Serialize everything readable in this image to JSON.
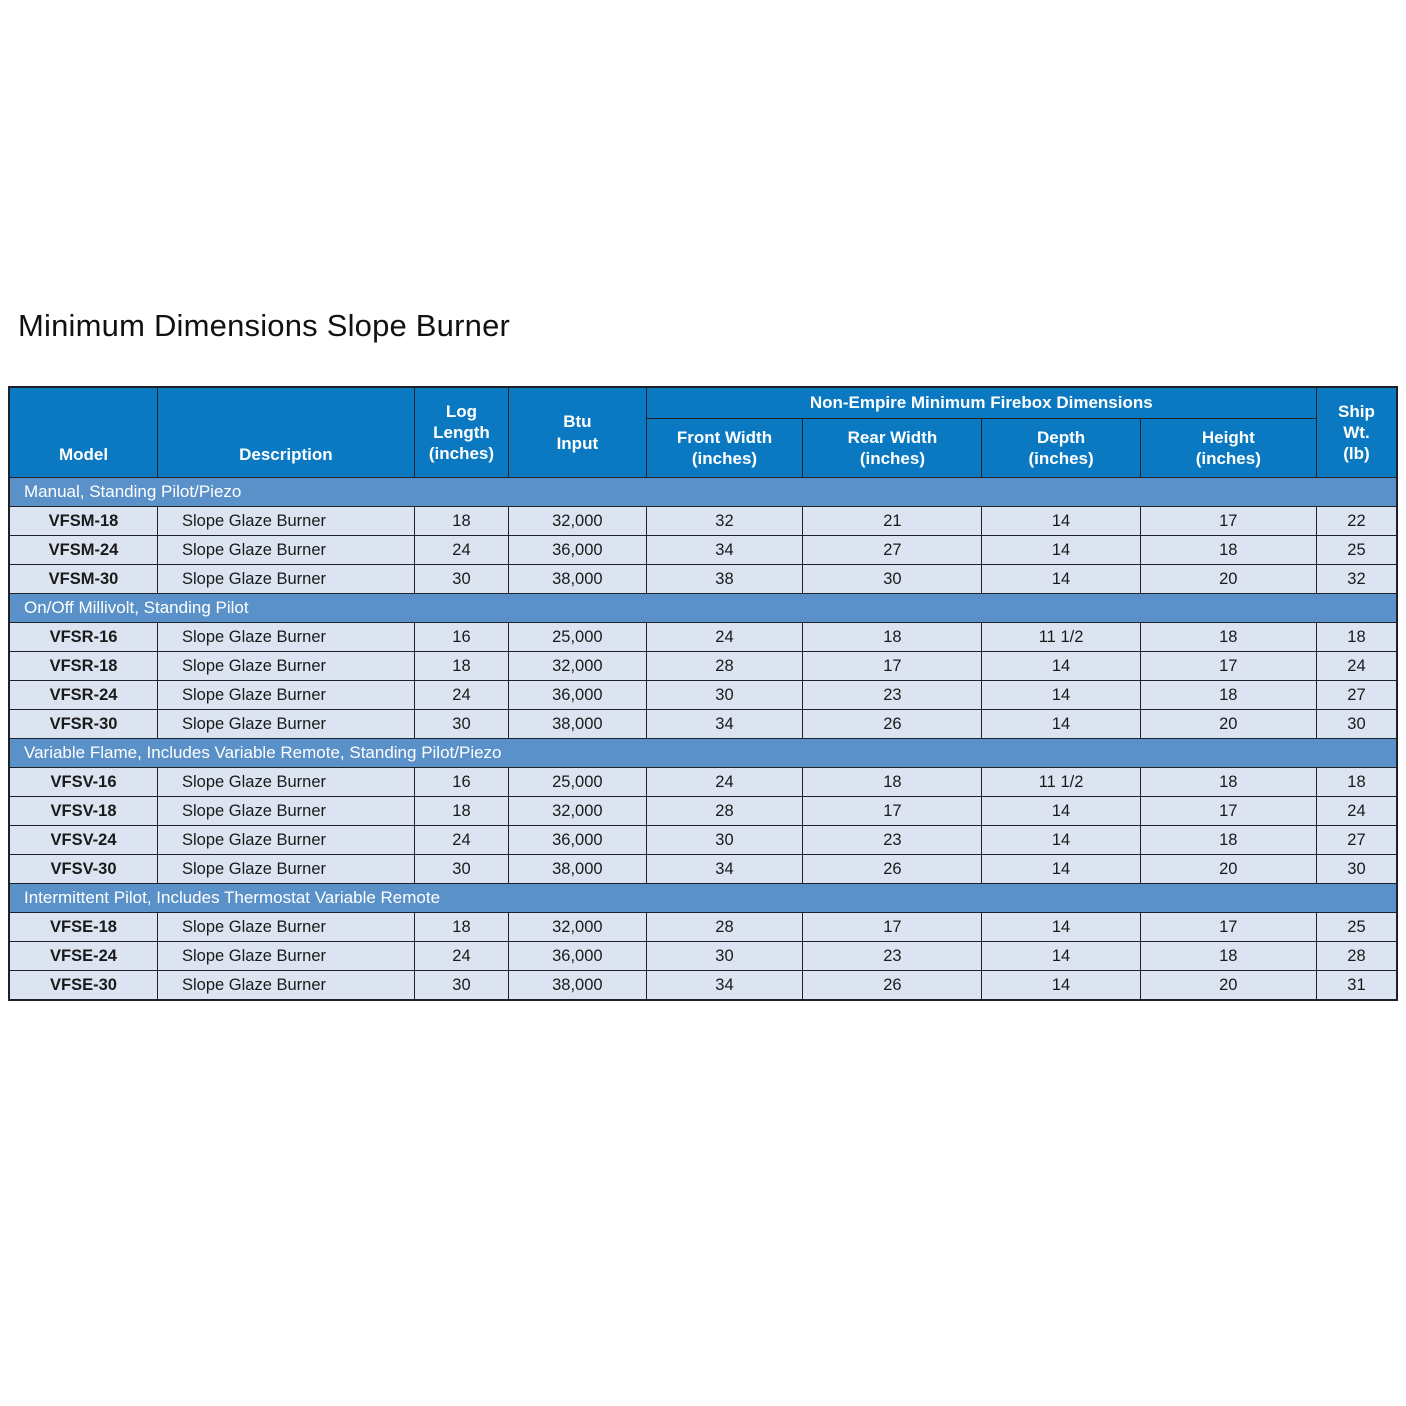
{
  "page": {
    "title": "Minimum Dimensions Slope Burner"
  },
  "table": {
    "colors": {
      "header_bg": "#0b79c1",
      "section_bg": "#5a91c8",
      "row_bg": "#dce4f1",
      "border": "#1c2228",
      "header_text": "#ffffff",
      "cell_text": "#1a1a1a"
    },
    "header": {
      "model": "Model",
      "description": "Description",
      "log_length": "Log\nLength\n(inches)",
      "btu_input": "Btu\nInput",
      "group": "Non-Empire Minimum Firebox Dimensions",
      "front_width": "Front Width\n(inches)",
      "rear_width": "Rear Width\n(inches)",
      "depth": "Depth\n(inches)",
      "height": "Height\n(inches)",
      "ship_wt": "Ship\nWt.\n(lb)"
    },
    "sections": [
      {
        "label": "Manual, Standing Pilot/Piezo",
        "rows": [
          {
            "model": "VFSM-18",
            "description": "Slope Glaze Burner",
            "log_length": "18",
            "btu_input": "32,000",
            "front_width": "32",
            "rear_width": "21",
            "depth": "14",
            "height": "17",
            "ship_wt": "22"
          },
          {
            "model": "VFSM-24",
            "description": "Slope Glaze Burner",
            "log_length": "24",
            "btu_input": "36,000",
            "front_width": "34",
            "rear_width": "27",
            "depth": "14",
            "height": "18",
            "ship_wt": "25"
          },
          {
            "model": "VFSM-30",
            "description": "Slope Glaze Burner",
            "log_length": "30",
            "btu_input": "38,000",
            "front_width": "38",
            "rear_width": "30",
            "depth": "14",
            "height": "20",
            "ship_wt": "32"
          }
        ]
      },
      {
        "label": "On/Off Millivolt, Standing Pilot",
        "rows": [
          {
            "model": "VFSR-16",
            "description": "Slope Glaze Burner",
            "log_length": "16",
            "btu_input": "25,000",
            "front_width": "24",
            "rear_width": "18",
            "depth": "11 1/2",
            "height": "18",
            "ship_wt": "18"
          },
          {
            "model": "VFSR-18",
            "description": "Slope Glaze Burner",
            "log_length": "18",
            "btu_input": "32,000",
            "front_width": "28",
            "rear_width": "17",
            "depth": "14",
            "height": "17",
            "ship_wt": "24"
          },
          {
            "model": "VFSR-24",
            "description": "Slope Glaze Burner",
            "log_length": "24",
            "btu_input": "36,000",
            "front_width": "30",
            "rear_width": "23",
            "depth": "14",
            "height": "18",
            "ship_wt": "27"
          },
          {
            "model": "VFSR-30",
            "description": "Slope Glaze Burner",
            "log_length": "30",
            "btu_input": "38,000",
            "front_width": "34",
            "rear_width": "26",
            "depth": "14",
            "height": "20",
            "ship_wt": "30"
          }
        ]
      },
      {
        "label": "Variable Flame, Includes Variable Remote, Standing Pilot/Piezo",
        "rows": [
          {
            "model": "VFSV-16",
            "description": "Slope Glaze Burner",
            "log_length": "16",
            "btu_input": "25,000",
            "front_width": "24",
            "rear_width": "18",
            "depth": "11 1/2",
            "height": "18",
            "ship_wt": "18"
          },
          {
            "model": "VFSV-18",
            "description": "Slope Glaze Burner",
            "log_length": "18",
            "btu_input": "32,000",
            "front_width": "28",
            "rear_width": "17",
            "depth": "14",
            "height": "17",
            "ship_wt": "24"
          },
          {
            "model": "VFSV-24",
            "description": "Slope Glaze Burner",
            "log_length": "24",
            "btu_input": "36,000",
            "front_width": "30",
            "rear_width": "23",
            "depth": "14",
            "height": "18",
            "ship_wt": "27"
          },
          {
            "model": "VFSV-30",
            "description": "Slope Glaze Burner",
            "log_length": "30",
            "btu_input": "38,000",
            "front_width": "34",
            "rear_width": "26",
            "depth": "14",
            "height": "20",
            "ship_wt": "30"
          }
        ]
      },
      {
        "label": "Intermittent Pilot, Includes Thermostat Variable Remote",
        "rows": [
          {
            "model": "VFSE-18",
            "description": "Slope Glaze Burner",
            "log_length": "18",
            "btu_input": "32,000",
            "front_width": "28",
            "rear_width": "17",
            "depth": "14",
            "height": "17",
            "ship_wt": "25"
          },
          {
            "model": "VFSE-24",
            "description": "Slope Glaze Burner",
            "log_length": "24",
            "btu_input": "36,000",
            "front_width": "30",
            "rear_width": "23",
            "depth": "14",
            "height": "18",
            "ship_wt": "28"
          },
          {
            "model": "VFSE-30",
            "description": "Slope Glaze Burner",
            "log_length": "30",
            "btu_input": "38,000",
            "front_width": "34",
            "rear_width": "26",
            "depth": "14",
            "height": "20",
            "ship_wt": "31"
          }
        ]
      }
    ]
  }
}
